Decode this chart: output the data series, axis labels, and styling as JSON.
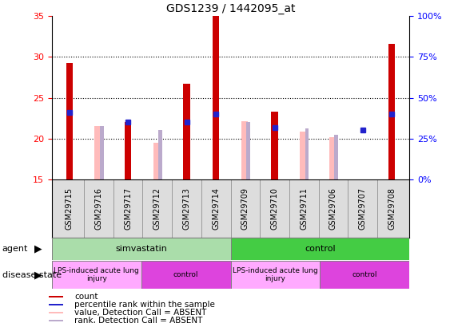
{
  "title": "GDS1239 / 1442095_at",
  "samples": [
    "GSM29715",
    "GSM29716",
    "GSM29717",
    "GSM29712",
    "GSM29713",
    "GSM29714",
    "GSM29709",
    "GSM29710",
    "GSM29711",
    "GSM29706",
    "GSM29707",
    "GSM29708"
  ],
  "count_values": [
    29.3,
    null,
    22.0,
    null,
    26.7,
    35.0,
    null,
    23.3,
    null,
    null,
    null,
    31.6
  ],
  "pink_value_values": [
    null,
    21.5,
    null,
    19.5,
    null,
    null,
    22.1,
    null,
    20.8,
    20.2,
    null,
    null
  ],
  "pink_rank_values": [
    null,
    21.5,
    null,
    21.0,
    null,
    null,
    22.0,
    null,
    21.2,
    20.5,
    null,
    null
  ],
  "blue_rank_values": [
    23.2,
    null,
    22.0,
    null,
    22.0,
    23.0,
    null,
    21.3,
    null,
    null,
    21.0,
    23.0
  ],
  "ylim_left": [
    15,
    35
  ],
  "yticks_left": [
    15,
    20,
    25,
    30,
    35
  ],
  "yticks_right": [
    0,
    25,
    50,
    75,
    100
  ],
  "ytick_labels_right": [
    "0%",
    "25%",
    "50%",
    "75%",
    "100%"
  ],
  "agent_groups": [
    {
      "label": "simvastatin",
      "start": 0,
      "end": 6,
      "color": "#aaddaa"
    },
    {
      "label": "control",
      "start": 6,
      "end": 12,
      "color": "#44cc44"
    }
  ],
  "disease_groups": [
    {
      "label": "LPS-induced acute lung\ninjury",
      "start": 0,
      "end": 3,
      "color": "#ffaaff"
    },
    {
      "label": "control",
      "start": 3,
      "end": 6,
      "color": "#dd44dd"
    },
    {
      "label": "LPS-induced acute lung\ninjury",
      "start": 6,
      "end": 9,
      "color": "#ffaaff"
    },
    {
      "label": "control",
      "start": 9,
      "end": 12,
      "color": "#dd44dd"
    }
  ],
  "count_color": "#cc0000",
  "pink_value_color": "#ffbbbb",
  "pink_rank_color": "#bbaacc",
  "blue_rank_color": "#2222cc",
  "legend_items": [
    {
      "label": "count",
      "color": "#cc0000"
    },
    {
      "label": "percentile rank within the sample",
      "color": "#2222cc"
    },
    {
      "label": "value, Detection Call = ABSENT",
      "color": "#ffbbbb"
    },
    {
      "label": "rank, Detection Call = ABSENT",
      "color": "#bbaacc"
    }
  ]
}
